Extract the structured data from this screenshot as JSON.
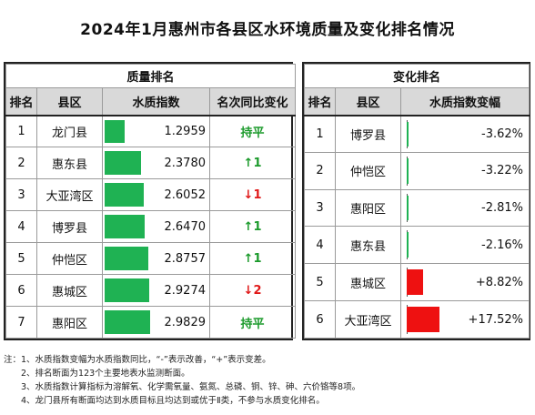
{
  "title": "2024年1月惠州市各县区水环境质量及变化排名情况",
  "left": {
    "section_title": "质量排名",
    "headers": [
      "排名",
      "县区",
      "水质指数",
      "名次同比变化"
    ],
    "rows": [
      {
        "rank": "1",
        "district": "龙门县",
        "index": "1.2959",
        "change": "持平",
        "change_type": "flat",
        "index_value": 1.2959
      },
      {
        "rank": "2",
        "district": "惠东县",
        "index": "2.3780",
        "change": "↑1",
        "change_type": "up",
        "index_value": 2.378
      },
      {
        "rank": "3",
        "district": "大亚湾区",
        "index": "2.6052",
        "change": "↓1",
        "change_type": "down",
        "index_value": 2.6052
      },
      {
        "rank": "4",
        "district": "博罗县",
        "index": "2.6470",
        "change": "↑1",
        "change_type": "up",
        "index_value": 2.647
      },
      {
        "rank": "5",
        "district": "仲恺区",
        "index": "2.8757",
        "change": "↑1",
        "change_type": "up",
        "index_value": 2.8757
      },
      {
        "rank": "6",
        "district": "惠城区",
        "index": "2.9274",
        "change": "↓2",
        "change_type": "down",
        "index_value": 2.9274
      },
      {
        "rank": "7",
        "district": "惠阳区",
        "index": "2.9829",
        "change": "持平",
        "change_type": "flat",
        "index_value": 2.9829
      }
    ],
    "bar_color": "#1fb253"
  },
  "right": {
    "section_title": "变化排名",
    "headers": [
      "排名",
      "县区",
      "水质指数变幅"
    ],
    "rows": [
      {
        "rank": "1",
        "district": "博罗县",
        "change": "-3.62%",
        "pct_value": -3.62
      },
      {
        "rank": "2",
        "district": "仲恺区",
        "change": "-3.22%",
        "pct_value": -3.22
      },
      {
        "rank": "3",
        "district": "惠阳区",
        "change": "-2.81%",
        "pct_value": -2.81
      },
      {
        "rank": "4",
        "district": "惠东县",
        "change": "-2.16%",
        "pct_value": -2.16
      },
      {
        "rank": "5",
        "district": "惠城区",
        "change": "+8.82%",
        "pct_value": 8.82
      },
      {
        "rank": "6",
        "district": "大亚湾区",
        "change": "+17.52%",
        "pct_value": 17.52
      }
    ],
    "neg_color": "#1fb253",
    "pos_color": "#ee1111"
  },
  "notes": [
    "注：1、水质指数变幅为水质指数同比，“-”表示改善，“+”表示变差。",
    "　　2、排名断面为123个主要地表水监测断面。",
    "　　3、水质指数计算指标为溶解氧、化学需氧量、氨氮、总磷、铜、锌、砷、六价铬等8项。",
    "　　4、龙门县所有断面均达到水质目标且均达到或优于Ⅱ类，不参与水质变化排名。"
  ]
}
